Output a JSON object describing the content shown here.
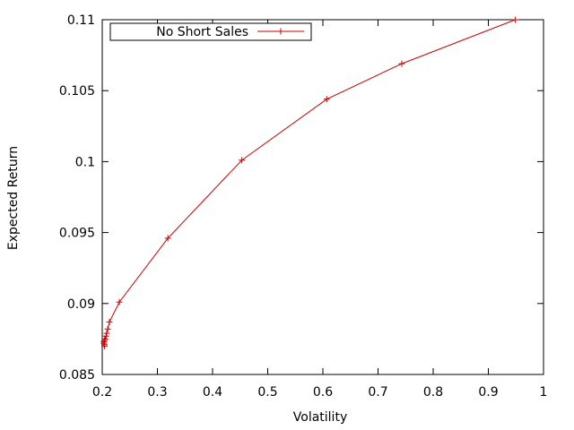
{
  "chart_data": {
    "type": "line",
    "title": "",
    "xlabel": "Volatility",
    "ylabel": "Expected Return",
    "xlim": [
      0.2,
      1
    ],
    "ylim": [
      0.085,
      0.11
    ],
    "x_ticks": [
      "0.2",
      "0.3",
      "0.4",
      "0.5",
      "0.6",
      "0.7",
      "0.8",
      "0.9",
      "1"
    ],
    "y_ticks": [
      "0.085",
      "0.09",
      "0.095",
      "0.1",
      "0.105",
      "0.11"
    ],
    "grid": false,
    "legend_position": "top-left",
    "series": [
      {
        "name": "No Short Sales",
        "color": "#cc0000",
        "marker": "plus",
        "points": [
          {
            "x": 0.204,
            "y": 0.087
          },
          {
            "x": 0.204,
            "y": 0.0871
          },
          {
            "x": 0.203,
            "y": 0.0872
          },
          {
            "x": 0.203,
            "y": 0.0873
          },
          {
            "x": 0.204,
            "y": 0.0874
          },
          {
            "x": 0.205,
            "y": 0.0875
          },
          {
            "x": 0.207,
            "y": 0.0877
          },
          {
            "x": 0.208,
            "y": 0.0879
          },
          {
            "x": 0.21,
            "y": 0.0882
          },
          {
            "x": 0.213,
            "y": 0.0887
          },
          {
            "x": 0.231,
            "y": 0.0901
          },
          {
            "x": 0.319,
            "y": 0.0946
          },
          {
            "x": 0.453,
            "y": 0.1001
          },
          {
            "x": 0.607,
            "y": 0.1044
          },
          {
            "x": 0.743,
            "y": 0.1069
          },
          {
            "x": 0.949,
            "y": 0.11
          }
        ]
      }
    ]
  }
}
